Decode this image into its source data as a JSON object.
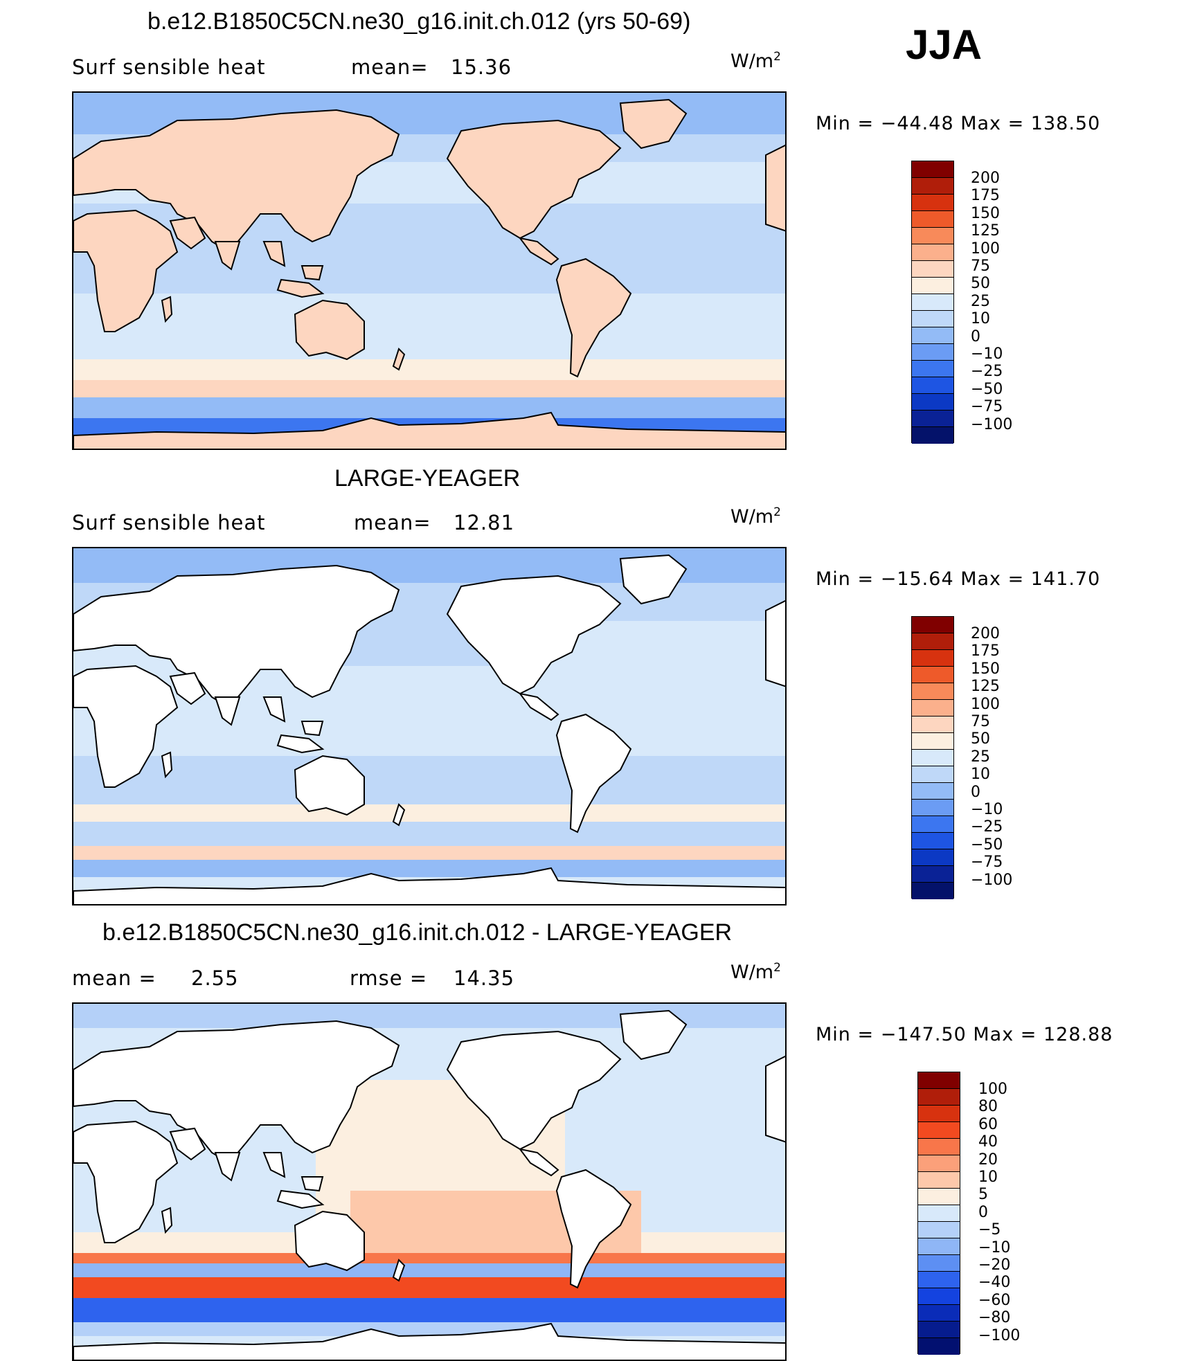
{
  "season": "JJA",
  "panels": [
    {
      "title": "b.e12.B1850C5CN.ne30_g16.init.ch.012 (yrs 50-69)",
      "left_label": "Surf  sensible  heat",
      "stat_label": "mean=",
      "stat_value": "15.36",
      "unit": "W/m",
      "unit_exp": "2",
      "min_max": "Min  =  −44.48  Max  =  138.50",
      "colorbar": {
        "colors": [
          "#800000",
          "#b01e0a",
          "#d7320f",
          "#ee5a2a",
          "#f88a5a",
          "#fbb08c",
          "#fdd6c0",
          "#fcefe0",
          "#d8e9fa",
          "#bfd8f8",
          "#93bbf6",
          "#6b9cf4",
          "#3c76f0",
          "#1e55e3",
          "#0c39c4",
          "#0a2296",
          "#04126a"
        ],
        "labels": [
          "200",
          "175",
          "150",
          "125",
          "100",
          "75",
          "50",
          "25",
          "10",
          "0",
          "−10",
          "−25",
          "−50",
          "−75",
          "−100"
        ]
      }
    },
    {
      "title": "LARGE-YEAGER",
      "left_label": "Surf  sensible  heat",
      "stat_label": "mean=",
      "stat_value": "12.81",
      "unit": "W/m",
      "unit_exp": "2",
      "min_max": "Min  =  −15.64  Max  =  141.70",
      "colorbar": {
        "colors": [
          "#800000",
          "#b01e0a",
          "#d7320f",
          "#ee5a2a",
          "#f88a5a",
          "#fbb08c",
          "#fdd6c0",
          "#fcefe0",
          "#d8e9fa",
          "#bfd8f8",
          "#93bbf6",
          "#6b9cf4",
          "#3c76f0",
          "#1e55e3",
          "#0c39c4",
          "#0a2296",
          "#04126a"
        ],
        "labels": [
          "200",
          "175",
          "150",
          "125",
          "100",
          "75",
          "50",
          "25",
          "10",
          "0",
          "−10",
          "−25",
          "−50",
          "−75",
          "−100"
        ]
      }
    },
    {
      "title": "b.e12.B1850C5CN.ne30_g16.init.ch.012 - LARGE-YEAGER",
      "left_label": "mean  =",
      "left_value": "2.55",
      "stat_label": "rmse  =",
      "stat_value": "14.35",
      "unit": "W/m",
      "unit_exp": "2",
      "min_max": "Min  =  −147.50  Max  =  128.88",
      "colorbar": {
        "colors": [
          "#800000",
          "#b01e0a",
          "#d7320f",
          "#f24a20",
          "#f8764a",
          "#fba07a",
          "#fdc8aa",
          "#fcefe0",
          "#d8e9fa",
          "#b4d0f8",
          "#8fb6f6",
          "#5d8ff3",
          "#2e63ee",
          "#1443e0",
          "#0a2cb8",
          "#061c8e",
          "#021070"
        ],
        "labels": [
          "100",
          "80",
          "60",
          "40",
          "20",
          "10",
          "5",
          "0",
          "−5",
          "−10",
          "−20",
          "−40",
          "−60",
          "−80",
          "−100"
        ]
      }
    }
  ]
}
